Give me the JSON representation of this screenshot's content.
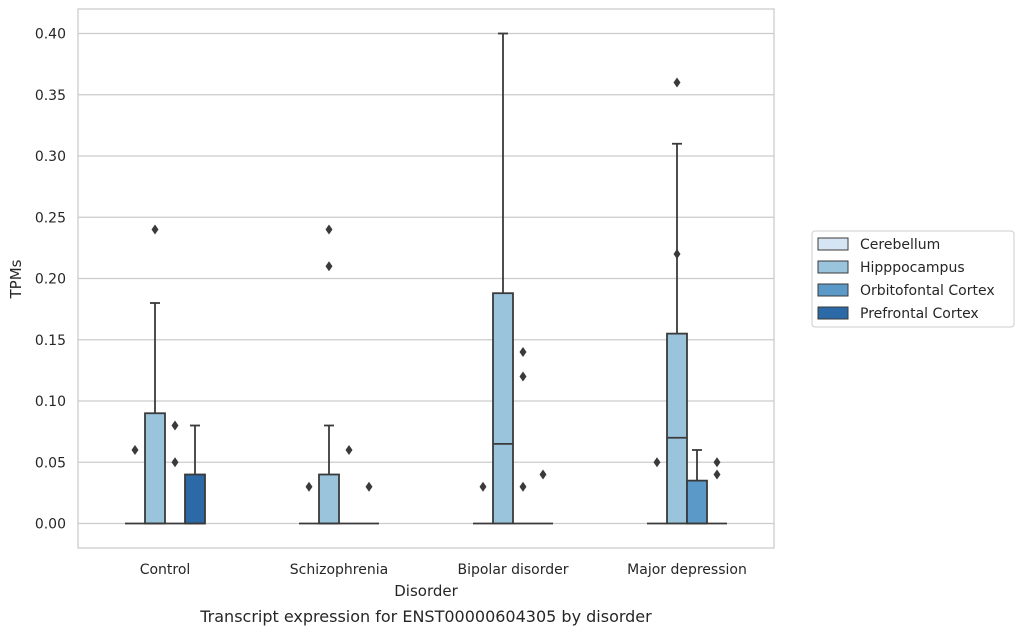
{
  "chart_data": {
    "type": "boxplot",
    "caption": "Transcript expression for ENST00000604305 by disorder",
    "xlabel": "Disorder",
    "ylabel": "TPMs",
    "ylim": [
      -0.02,
      0.42
    ],
    "yticks": [
      0.0,
      0.05,
      0.1,
      0.15,
      0.2,
      0.25,
      0.3,
      0.35,
      0.4
    ],
    "ytick_labels": [
      "0.00",
      "0.05",
      "0.10",
      "0.15",
      "0.20",
      "0.25",
      "0.30",
      "0.35",
      "0.40"
    ],
    "grid": "horizontal",
    "legend_position": "right",
    "categories": [
      "Control",
      "Schizophrenia",
      "Bipolar disorder",
      "Major depression"
    ],
    "series": [
      {
        "name": "Cerebellum",
        "color": "#d6e5f3",
        "boxes": [
          {
            "q1": 0,
            "median": 0,
            "q3": 0,
            "whisker_low": 0,
            "whisker_high": 0,
            "outliers": [
              0.06
            ]
          },
          {
            "q1": 0,
            "median": 0,
            "q3": 0,
            "whisker_low": 0,
            "whisker_high": 0,
            "outliers": [
              0.03
            ]
          },
          {
            "q1": 0,
            "median": 0,
            "q3": 0,
            "whisker_low": 0,
            "whisker_high": 0,
            "outliers": [
              0.03
            ]
          },
          {
            "q1": 0,
            "median": 0,
            "q3": 0,
            "whisker_low": 0,
            "whisker_high": 0,
            "outliers": [
              0.05
            ]
          }
        ]
      },
      {
        "name": "Hipppocampus",
        "color": "#9ac3dc",
        "boxes": [
          {
            "q1": 0,
            "median": 0,
            "q3": 0.09,
            "whisker_low": 0,
            "whisker_high": 0.18,
            "outliers": [
              0.24
            ]
          },
          {
            "q1": 0,
            "median": 0,
            "q3": 0.04,
            "whisker_low": 0,
            "whisker_high": 0.08,
            "outliers": [
              0.21,
              0.24
            ]
          },
          {
            "q1": 0,
            "median": 0.065,
            "q3": 0.188,
            "whisker_low": 0,
            "whisker_high": 0.4,
            "outliers": []
          },
          {
            "q1": 0,
            "median": 0.07,
            "q3": 0.155,
            "whisker_low": 0,
            "whisker_high": 0.31,
            "outliers": [
              0.36,
              0.22
            ]
          }
        ]
      },
      {
        "name": "Orbitofontal Cortex",
        "color": "#5b9ac8",
        "boxes": [
          {
            "q1": 0,
            "median": 0,
            "q3": 0,
            "whisker_low": 0,
            "whisker_high": 0,
            "outliers": [
              0.08,
              0.05
            ]
          },
          {
            "q1": 0,
            "median": 0,
            "q3": 0,
            "whisker_low": 0,
            "whisker_high": 0,
            "outliers": [
              0.06
            ]
          },
          {
            "q1": 0,
            "median": 0,
            "q3": 0,
            "whisker_low": 0,
            "whisker_high": 0,
            "outliers": [
              0.14,
              0.12,
              0.03
            ]
          },
          {
            "q1": 0,
            "median": 0,
            "q3": 0.035,
            "whisker_low": 0,
            "whisker_high": 0.06,
            "outliers": []
          }
        ]
      },
      {
        "name": "Prefrontal Cortex",
        "color": "#2b6aa6",
        "boxes": [
          {
            "q1": 0,
            "median": 0,
            "q3": 0.04,
            "whisker_low": 0,
            "whisker_high": 0.08,
            "outliers": []
          },
          {
            "q1": 0,
            "median": 0,
            "q3": 0,
            "whisker_low": 0,
            "whisker_high": 0,
            "outliers": [
              0.03
            ]
          },
          {
            "q1": 0,
            "median": 0,
            "q3": 0,
            "whisker_low": 0,
            "whisker_high": 0,
            "outliers": [
              0.04
            ]
          },
          {
            "q1": 0,
            "median": 0,
            "q3": 0,
            "whisker_low": 0,
            "whisker_high": 0,
            "outliers": [
              0.05,
              0.04
            ]
          }
        ]
      }
    ]
  }
}
